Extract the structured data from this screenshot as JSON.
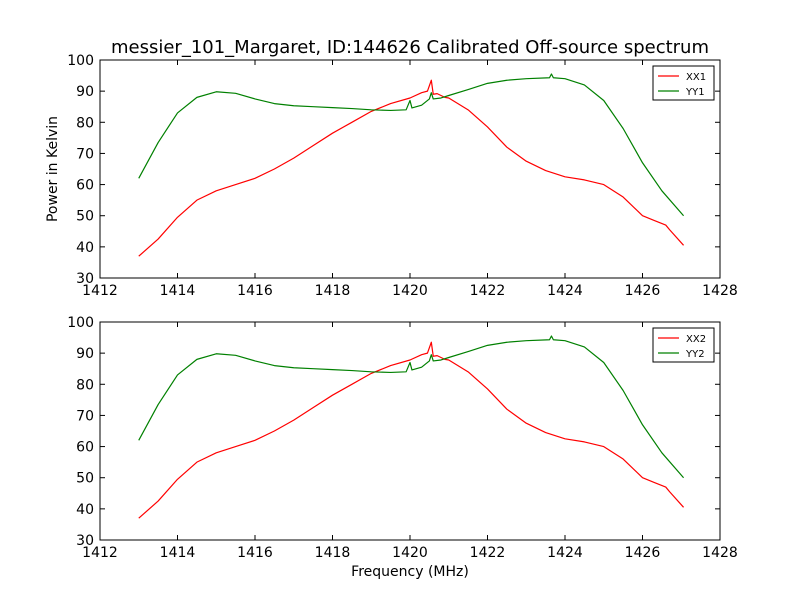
{
  "title": "messier_101_Margaret, ID:144626 Calibrated Off-source spectrum",
  "chart_data": [
    {
      "type": "line",
      "title": "",
      "xlabel": "",
      "ylabel": "Power in Kelvin",
      "xlim": [
        1412,
        1428
      ],
      "ylim": [
        30,
        100
      ],
      "xticks": [
        1412,
        1414,
        1416,
        1418,
        1420,
        1422,
        1424,
        1426,
        1428
      ],
      "yticks": [
        30,
        40,
        50,
        60,
        70,
        80,
        90,
        100
      ],
      "grid": false,
      "legend": "top-right",
      "series": [
        {
          "name": "XX1",
          "color": "#ff0000",
          "x": [
            1413.0,
            1413.5,
            1414.0,
            1414.5,
            1415.0,
            1415.5,
            1416.0,
            1416.5,
            1417.0,
            1417.5,
            1418.0,
            1418.5,
            1419.0,
            1419.5,
            1420.0,
            1420.3,
            1420.45,
            1420.55,
            1420.6,
            1420.7,
            1420.9,
            1421.0,
            1421.5,
            1422.0,
            1422.5,
            1423.0,
            1423.5,
            1424.0,
            1424.5,
            1425.0,
            1425.5,
            1426.0,
            1426.3,
            1426.6,
            1426.7,
            1427.06
          ],
          "y": [
            37.0,
            42.5,
            49.5,
            55.0,
            58.0,
            60.0,
            62.0,
            65.0,
            68.5,
            72.5,
            76.5,
            80.0,
            83.5,
            86.0,
            87.8,
            89.5,
            90.0,
            93.5,
            89.0,
            89.2,
            88.0,
            87.8,
            84.0,
            78.5,
            72.0,
            67.5,
            64.5,
            62.5,
            61.5,
            60.0,
            56.0,
            50.0,
            48.5,
            47.0,
            45.5,
            40.5
          ]
        },
        {
          "name": "YY1",
          "color": "#008000",
          "x": [
            1413.0,
            1413.5,
            1414.0,
            1414.5,
            1415.0,
            1415.5,
            1416.0,
            1416.5,
            1417.0,
            1417.5,
            1418.0,
            1418.5,
            1419.0,
            1419.5,
            1419.9,
            1420.0,
            1420.05,
            1420.3,
            1420.5,
            1420.55,
            1420.6,
            1420.8,
            1421.0,
            1421.5,
            1422.0,
            1422.5,
            1423.0,
            1423.6,
            1423.65,
            1423.7,
            1424.0,
            1424.5,
            1425.0,
            1425.5,
            1426.0,
            1426.5,
            1427.06
          ],
          "y": [
            62.0,
            73.5,
            83.0,
            88.0,
            89.8,
            89.3,
            87.5,
            86.0,
            85.3,
            85.0,
            84.7,
            84.4,
            84.0,
            83.8,
            84.0,
            87.0,
            84.6,
            85.5,
            87.5,
            89.5,
            87.5,
            87.8,
            88.6,
            90.5,
            92.5,
            93.5,
            94.0,
            94.3,
            95.5,
            94.3,
            94.0,
            92.0,
            87.0,
            78.0,
            67.0,
            58.0,
            50.0
          ]
        }
      ]
    },
    {
      "type": "line",
      "title": "",
      "xlabel": "Frequency (MHz)",
      "ylabel": "",
      "xlim": [
        1412,
        1428
      ],
      "ylim": [
        30,
        100
      ],
      "xticks": [
        1412,
        1414,
        1416,
        1418,
        1420,
        1422,
        1424,
        1426,
        1428
      ],
      "yticks": [
        30,
        40,
        50,
        60,
        70,
        80,
        90,
        100
      ],
      "grid": false,
      "legend": "top-right",
      "series": [
        {
          "name": "XX2",
          "color": "#ff0000",
          "x": [
            1413.0,
            1413.5,
            1414.0,
            1414.5,
            1415.0,
            1415.5,
            1416.0,
            1416.5,
            1417.0,
            1417.5,
            1418.0,
            1418.5,
            1419.0,
            1419.5,
            1420.0,
            1420.3,
            1420.45,
            1420.55,
            1420.6,
            1420.7,
            1420.9,
            1421.0,
            1421.5,
            1422.0,
            1422.5,
            1423.0,
            1423.5,
            1424.0,
            1424.5,
            1425.0,
            1425.5,
            1426.0,
            1426.3,
            1426.6,
            1426.7,
            1427.06
          ],
          "y": [
            37.0,
            42.5,
            49.5,
            55.0,
            58.0,
            60.0,
            62.0,
            65.0,
            68.5,
            72.5,
            76.5,
            80.0,
            83.5,
            86.0,
            87.8,
            89.5,
            90.0,
            93.5,
            89.0,
            89.2,
            88.0,
            87.8,
            84.0,
            78.5,
            72.0,
            67.5,
            64.5,
            62.5,
            61.5,
            60.0,
            56.0,
            50.0,
            48.5,
            47.0,
            45.5,
            40.5
          ]
        },
        {
          "name": "YY2",
          "color": "#008000",
          "x": [
            1413.0,
            1413.5,
            1414.0,
            1414.5,
            1415.0,
            1415.5,
            1416.0,
            1416.5,
            1417.0,
            1417.5,
            1418.0,
            1418.5,
            1419.0,
            1419.5,
            1419.9,
            1420.0,
            1420.05,
            1420.3,
            1420.5,
            1420.55,
            1420.6,
            1420.8,
            1421.0,
            1421.5,
            1422.0,
            1422.5,
            1423.0,
            1423.6,
            1423.65,
            1423.7,
            1424.0,
            1424.5,
            1425.0,
            1425.5,
            1426.0,
            1426.5,
            1427.06
          ],
          "y": [
            62.0,
            73.5,
            83.0,
            88.0,
            89.8,
            89.3,
            87.5,
            86.0,
            85.3,
            85.0,
            84.7,
            84.4,
            84.0,
            83.8,
            84.0,
            87.0,
            84.6,
            85.5,
            87.5,
            89.5,
            87.5,
            87.8,
            88.6,
            90.5,
            92.5,
            93.5,
            94.0,
            94.3,
            95.5,
            94.3,
            94.0,
            92.0,
            87.0,
            78.0,
            67.0,
            58.0,
            50.0
          ]
        }
      ]
    }
  ]
}
